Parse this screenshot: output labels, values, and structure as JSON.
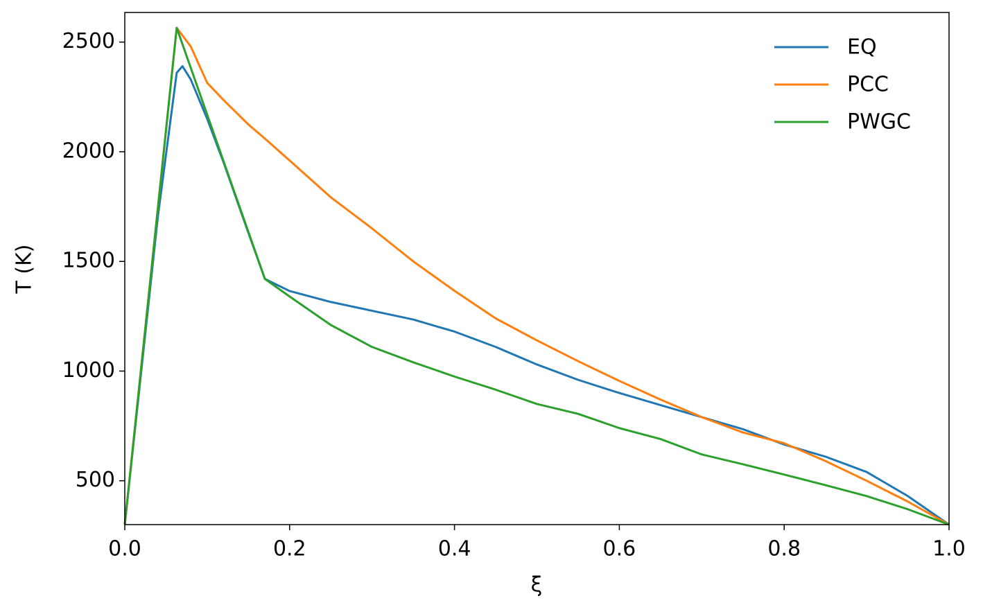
{
  "chart_data": {
    "type": "line",
    "x_label": "ξ",
    "y_label": "T (K)",
    "x": [
      0,
      0.02,
      0.04,
      0.063,
      0.07,
      0.08,
      0.1,
      0.12,
      0.15,
      0.17,
      0.2,
      0.25,
      0.3,
      0.35,
      0.4,
      0.45,
      0.5,
      0.55,
      0.6,
      0.65,
      0.7,
      0.75,
      0.8,
      0.85,
      0.9,
      0.95,
      1.0
    ],
    "series": [
      {
        "name": "EQ",
        "color": "#1f77b4",
        "values": [
          300,
          1000,
          1700,
          2360,
          2390,
          2330,
          2150,
          1950,
          1630,
          1420,
          1365,
          1315,
          1275,
          1235,
          1180,
          1110,
          1030,
          960,
          900,
          845,
          790,
          735,
          665,
          610,
          540,
          430,
          300
        ]
      },
      {
        "name": "PCC",
        "color": "#ff7f0e",
        "values": [
          300,
          1019,
          1738,
          2565,
          2530,
          2480,
          2314,
          2235,
          2124,
          2060,
          1960,
          1792,
          1650,
          1500,
          1366,
          1240,
          1140,
          1045,
          955,
          870,
          790,
          720,
          671,
          590,
          500,
          405,
          300
        ]
      },
      {
        "name": "PWGC",
        "color": "#2ca02c",
        "values": [
          300,
          1019,
          1738,
          2565,
          2490,
          2383,
          2169,
          1955,
          1634,
          1420,
          1340,
          1210,
          1110,
          1040,
          975,
          915,
          850,
          805,
          740,
          690,
          620,
          575,
          528,
          480,
          430,
          370,
          300
        ]
      }
    ],
    "xlim": [
      0,
      1
    ],
    "ylim": [
      300,
      2635
    ],
    "xticks": [
      {
        "value": 0,
        "label": "0.0"
      },
      0.2,
      0.4,
      0.6,
      0.8,
      {
        "value": 1,
        "label": "1.0"
      }
    ],
    "yticks": [
      500,
      1000,
      1500,
      2000,
      2500
    ],
    "legend": "upper right",
    "grid": false
  }
}
